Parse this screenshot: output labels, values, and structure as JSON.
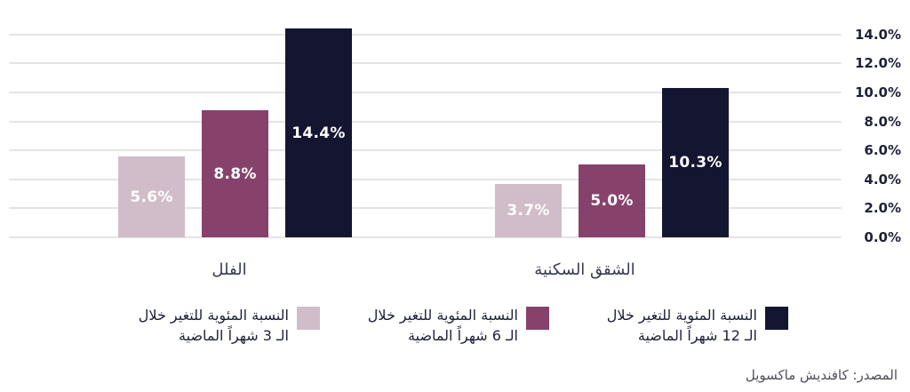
{
  "source": "المصدر: كافنديش ماكسويل",
  "colors": {
    "series_3m": "#d1bcc9",
    "series_6m": "#87426c",
    "series_12m": "#141631",
    "gridline": "#e4e4e8",
    "axis_label": "#1e2138",
    "bar_value_label": "#ffffff",
    "category_label": "#383a50",
    "legend_text": "#1d1f38",
    "source_text": "#4e4e59"
  },
  "chart_data": {
    "type": "bar",
    "direction": "rtl",
    "title": "",
    "xlabel": "",
    "ylabel": "",
    "ylim": [
      0,
      14
    ],
    "grid": true,
    "legend_position": "bottom",
    "y_axis_side": "right",
    "categories": [
      "الفلل",
      "الشقق السكنية"
    ],
    "y_ticks": [
      "0.0%",
      "2.0%",
      "4.0%",
      "6.0%",
      "8.0%",
      "10.0%",
      "12.0%",
      "14.0%"
    ],
    "series": [
      {
        "id": "3m",
        "name": "النسبة المئوية للتغير خلال الـ 3 شهراً الماضية",
        "color_key": "series_3m",
        "values": [
          5.6,
          3.7
        ],
        "labels": [
          "5.6%",
          "3.7%"
        ]
      },
      {
        "id": "6m",
        "name": "النسبة المئوية للتغير خلال الـ 6 شهراً الماضية",
        "color_key": "series_6m",
        "values": [
          8.8,
          5.0
        ],
        "labels": [
          "8.8%",
          "5.0%"
        ]
      },
      {
        "id": "12m",
        "name": "النسبة المئوية للتغير خلال الـ 12 شهراً الماضية",
        "color_key": "series_12m",
        "values": [
          14.4,
          10.3
        ],
        "labels": [
          "14.4%",
          "10.3%"
        ]
      }
    ],
    "legend": [
      {
        "line1": "النسبة المئوية للتغير خلال",
        "line2": "الـ 3 شهراً الماضية",
        "color_key": "series_3m"
      },
      {
        "line1": "النسبة المئوية للتغير خلال",
        "line2": "الـ 6 شهراً الماضية",
        "color_key": "series_6m"
      },
      {
        "line1": "النسبة المئوية للتغير خلال",
        "line2": "الـ 12 شهراً الماضية",
        "color_key": "series_12m"
      }
    ]
  }
}
